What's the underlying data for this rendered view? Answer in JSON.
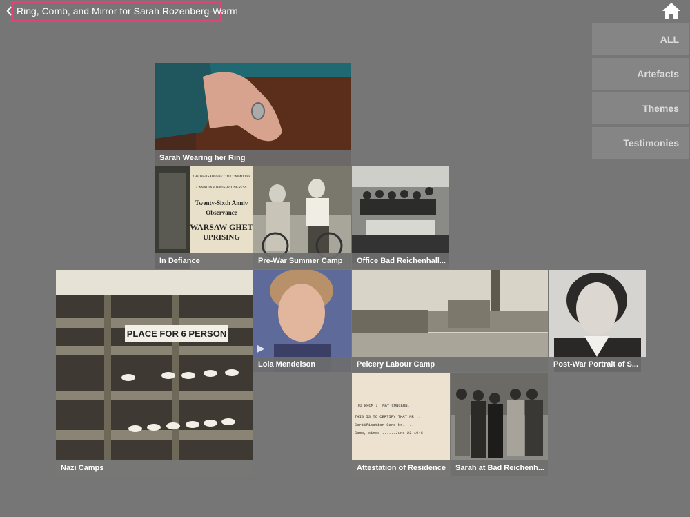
{
  "header": {
    "back_title": "Ring, Comb, and Mirror for Sarah Rozenberg-Warm",
    "highlight_color": "#e0427a",
    "home_icon": "home-icon"
  },
  "filters": [
    "ALL",
    "Artefacts",
    "Themes",
    "Testimonies"
  ],
  "tiles": {
    "t1": "Sarah Wearing her Ring",
    "t2": "In Defiance",
    "t3": "Pre-War Summer Camp",
    "t4": "Office Bad Reichenhall...",
    "t5": "Nazi Camps",
    "t6": "Lola Mendelson",
    "t7": "Pelcery Labour Camp",
    "t8": "Post-War Portrait of S...",
    "t9": "Attestation of Residence",
    "t10": "Sarah at Bad Reichenh..."
  },
  "poster": {
    "line1": "THE WARSAW GHETTO COMMITTEE",
    "line2": "CANADIAN JEWISH CONGRESS",
    "line3": "Twenty-Sixth Anniv",
    "line4": "Observance",
    "line5": "WARSAW GHET",
    "line6": "UPRISING"
  },
  "shelf_sign": "PLACE FOR 6 PERSON",
  "letter": {
    "line1": "TO WHOM IT MAY CONCERN,",
    "line2": "THIS IS TO CERTIFY THAT MR.....",
    "line3": "Certification Card Nr......",
    "line4": "Camp, since ......June 22 1946"
  }
}
